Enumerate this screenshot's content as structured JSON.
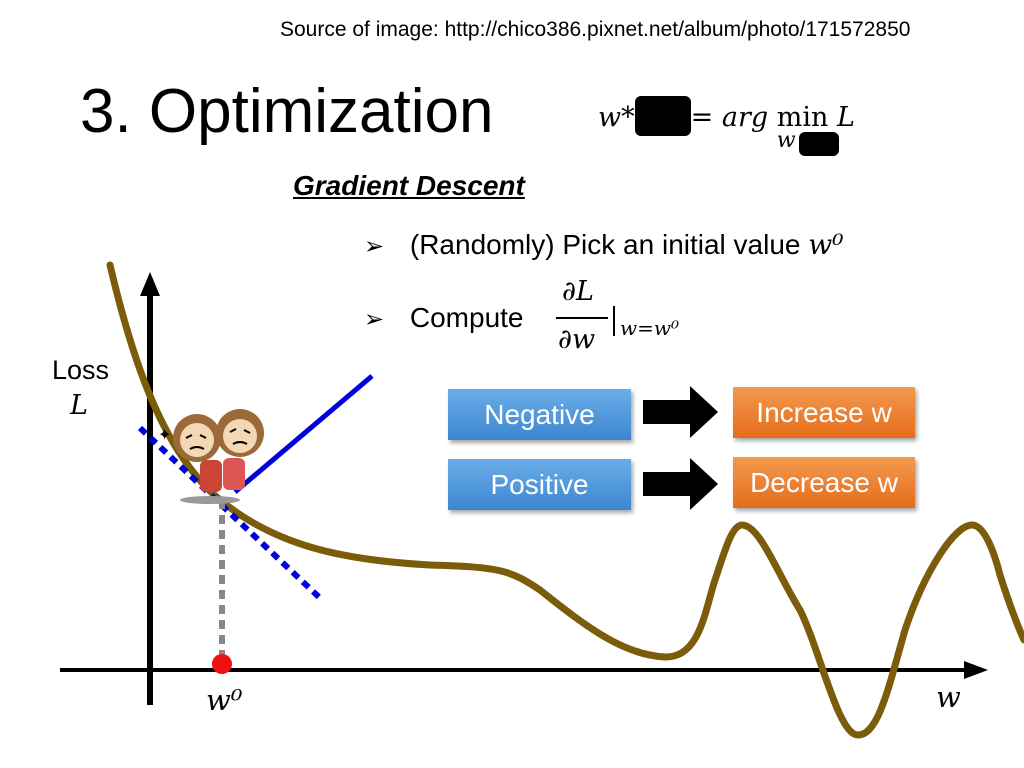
{
  "source": "Source of image: http://chico386.pixnet.net/album/photo/171572850",
  "title": "3. Optimization",
  "formula": {
    "lhs": "w*",
    "eq": "=",
    "arg": "arg",
    "min": "min",
    "sub": "w",
    "obj": "L"
  },
  "section_heading": "Gradient Descent",
  "bullets": [
    {
      "text": "(Randomly) Pick an initial value ",
      "math": "w⁰"
    },
    {
      "text": "Compute"
    }
  ],
  "derivative": {
    "numerator": "∂L",
    "denominator": "∂w",
    "eval": "w=w⁰"
  },
  "rules": [
    {
      "condition": "Negative",
      "action": "Increase w"
    },
    {
      "condition": "Positive",
      "action": "Decrease w"
    }
  ],
  "axes": {
    "y_label_line1": "Loss",
    "y_label_line2": "L",
    "x_label": "w",
    "initial_point_label": "w⁰"
  },
  "colors": {
    "curve": "#7a5c0a",
    "tangent": "#0000dd",
    "blue_box": "#4a90d9",
    "orange_box": "#ea7a2a",
    "start_point": "#ee1111"
  },
  "icons": {
    "bullet": "arrowhead-bullet",
    "arrow": "right-arrow",
    "character": "cartoon-hikers"
  }
}
